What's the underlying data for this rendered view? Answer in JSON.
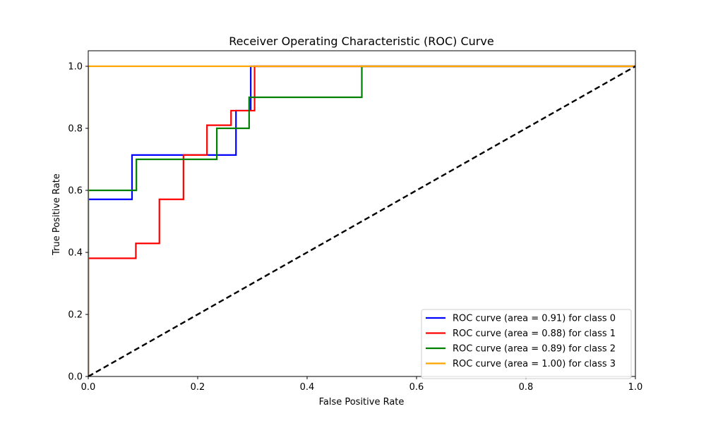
{
  "chart_data": {
    "type": "line",
    "title": "Receiver Operating Characteristic (ROC) Curve",
    "xlabel": "False Positive Rate",
    "ylabel": "True Positive Rate",
    "xlim": [
      0.0,
      1.0
    ],
    "ylim": [
      0.0,
      1.05
    ],
    "xticks": [
      0.0,
      0.2,
      0.4,
      0.6,
      0.8,
      1.0
    ],
    "yticks": [
      0.0,
      0.2,
      0.4,
      0.6,
      0.8,
      1.0
    ],
    "xtick_labels": [
      "0.0",
      "0.2",
      "0.4",
      "0.6",
      "0.8",
      "1.0"
    ],
    "ytick_labels": [
      "0.0",
      "0.2",
      "0.4",
      "0.6",
      "0.8",
      "1.0"
    ],
    "grid": false,
    "legend_position": "lower-right",
    "series": [
      {
        "name": "ROC curve (area = 0.91) for class 0",
        "color": "#0000ff",
        "x": [
          0.0,
          0.0,
          0.08,
          0.08,
          0.27,
          0.27,
          0.297,
          0.297,
          1.0
        ],
        "y": [
          0.0,
          0.571,
          0.571,
          0.714,
          0.714,
          0.857,
          0.857,
          1.0,
          1.0
        ]
      },
      {
        "name": "ROC curve (area = 0.88) for class 1",
        "color": "#ff0000",
        "x": [
          0.0,
          0.0,
          0.087,
          0.087,
          0.13,
          0.13,
          0.174,
          0.174,
          0.217,
          0.217,
          0.261,
          0.261,
          0.304,
          0.304,
          1.0
        ],
        "y": [
          0.0,
          0.381,
          0.381,
          0.429,
          0.429,
          0.571,
          0.571,
          0.714,
          0.714,
          0.81,
          0.81,
          0.857,
          0.857,
          1.0,
          1.0
        ]
      },
      {
        "name": "ROC curve (area = 0.89) for class 2",
        "color": "#008000",
        "x": [
          0.0,
          0.0,
          0.088,
          0.088,
          0.235,
          0.235,
          0.294,
          0.294,
          0.5,
          0.5,
          1.0
        ],
        "y": [
          0.0,
          0.6,
          0.6,
          0.7,
          0.7,
          0.8,
          0.8,
          0.9,
          0.9,
          1.0,
          1.0
        ]
      },
      {
        "name": "ROC curve (area = 1.00) for class 3",
        "color": "#ffa500",
        "x": [
          0.0,
          0.0,
          1.0
        ],
        "y": [
          0.0,
          1.0,
          1.0
        ]
      }
    ],
    "reference_line": {
      "x": [
        0.0,
        1.0
      ],
      "y": [
        0.0,
        1.0
      ],
      "color": "#000000",
      "style": "dashed"
    }
  }
}
